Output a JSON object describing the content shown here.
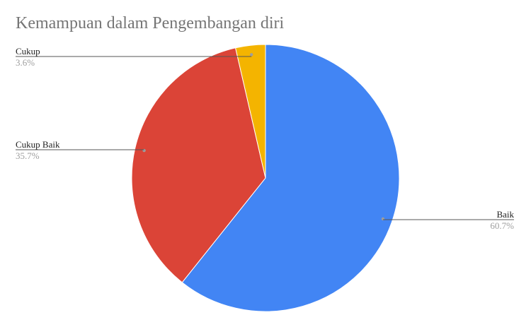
{
  "chart_data": {
    "type": "pie",
    "title": "Kemampuan dalam Pengembangan diri",
    "slices": [
      {
        "label": "Baik",
        "value": 60.7,
        "percent_label": "60.7%",
        "color": "#4285f4"
      },
      {
        "label": "Cukup Baik",
        "value": 35.7,
        "percent_label": "35.7%",
        "color": "#db4437"
      },
      {
        "label": "Cukup",
        "value": 3.6,
        "percent_label": "3.6%",
        "color": "#f4b400"
      }
    ],
    "legend": "none",
    "label_style": "callout"
  }
}
